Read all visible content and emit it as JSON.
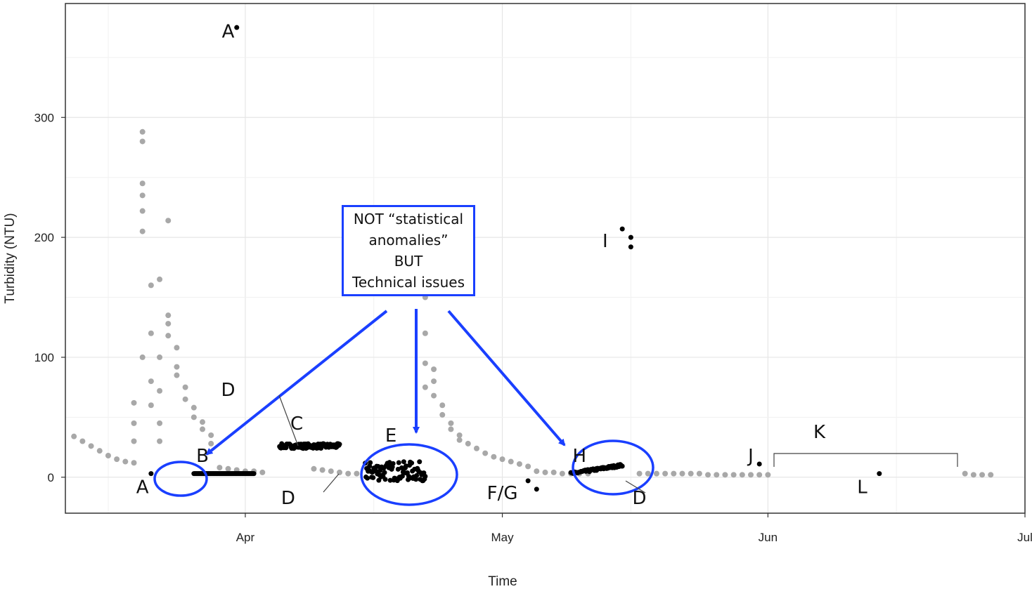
{
  "chart_data": {
    "type": "scatter",
    "title": "",
    "xlabel": "Time",
    "ylabel": "Turbidity (NTU)",
    "x_ticks": [
      "Apr",
      "May",
      "Jun",
      "Jul"
    ],
    "y_ticks": [
      0,
      100,
      200,
      300
    ],
    "xlim": [
      "2021-03-11",
      "2021-07-01"
    ],
    "ylim": [
      -30,
      395
    ],
    "grid": true,
    "colors": {
      "normal": "#a8a8a8",
      "anomaly": "#000000",
      "highlight": "#1a3fff"
    },
    "series": [
      {
        "points": [
          [
            "2021-03-12",
            34
          ],
          [
            "2021-03-13",
            30
          ],
          [
            "2021-03-14",
            26
          ],
          [
            "2021-03-15",
            22
          ],
          [
            "2021-03-16",
            18
          ],
          [
            "2021-03-17",
            15
          ],
          [
            "2021-03-18",
            13
          ],
          [
            "2021-03-19",
            12
          ],
          [
            "2021-03-19",
            30
          ],
          [
            "2021-03-19",
            45
          ],
          [
            "2021-03-19",
            62
          ],
          [
            "2021-03-20",
            100
          ],
          [
            "2021-03-20",
            205
          ],
          [
            "2021-03-20",
            222
          ],
          [
            "2021-03-20",
            235
          ],
          [
            "2021-03-20",
            245
          ],
          [
            "2021-03-20",
            280
          ],
          [
            "2021-03-20",
            288
          ],
          [
            "2021-03-21",
            160
          ],
          [
            "2021-03-21",
            120
          ],
          [
            "2021-03-21",
            80
          ],
          [
            "2021-03-21",
            60
          ],
          [
            "2021-03-22",
            45
          ],
          [
            "2021-03-22",
            100
          ],
          [
            "2021-03-22",
            72
          ],
          [
            "2021-03-22",
            30
          ],
          [
            "2021-03-22",
            165
          ],
          [
            "2021-03-23",
            214
          ],
          [
            "2021-03-23",
            135
          ],
          [
            "2021-03-23",
            128
          ],
          [
            "2021-03-23",
            118
          ],
          [
            "2021-03-24",
            108
          ],
          [
            "2021-03-24",
            92
          ],
          [
            "2021-03-24",
            85
          ],
          [
            "2021-03-25",
            75
          ],
          [
            "2021-03-25",
            65
          ],
          [
            "2021-03-26",
            58
          ],
          [
            "2021-03-26",
            50
          ],
          [
            "2021-03-27",
            46
          ],
          [
            "2021-03-27",
            40
          ],
          [
            "2021-03-28",
            35
          ],
          [
            "2021-03-28",
            28
          ],
          [
            "2021-03-29",
            8
          ],
          [
            "2021-03-30",
            7
          ],
          [
            "2021-03-31",
            6
          ],
          [
            "2021-04-01",
            5
          ],
          [
            "2021-04-02",
            5
          ],
          [
            "2021-04-03",
            4
          ],
          [
            "2021-04-09",
            7
          ],
          [
            "2021-04-10",
            6
          ],
          [
            "2021-04-11",
            5
          ],
          [
            "2021-04-12",
            4
          ],
          [
            "2021-04-13",
            3
          ],
          [
            "2021-04-14",
            3
          ],
          [
            "2021-04-22",
            150
          ],
          [
            "2021-04-22",
            120
          ],
          [
            "2021-04-22",
            95
          ],
          [
            "2021-04-22",
            75
          ],
          [
            "2021-04-23",
            90
          ],
          [
            "2021-04-23",
            80
          ],
          [
            "2021-04-23",
            68
          ],
          [
            "2021-04-24",
            60
          ],
          [
            "2021-04-24",
            52
          ],
          [
            "2021-04-25",
            45
          ],
          [
            "2021-04-25",
            40
          ],
          [
            "2021-04-26",
            35
          ],
          [
            "2021-04-26",
            31
          ],
          [
            "2021-04-27",
            28
          ],
          [
            "2021-04-28",
            24
          ],
          [
            "2021-04-29",
            20
          ],
          [
            "2021-04-30",
            17
          ],
          [
            "2021-05-01",
            15
          ],
          [
            "2021-05-02",
            13
          ],
          [
            "2021-05-03",
            11
          ],
          [
            "2021-05-04",
            9
          ],
          [
            "2021-05-05",
            5
          ],
          [
            "2021-05-06",
            4
          ],
          [
            "2021-05-07",
            4
          ],
          [
            "2021-05-08",
            3
          ],
          [
            "2021-05-09",
            3
          ],
          [
            "2021-05-10",
            3
          ],
          [
            "2021-05-11",
            3
          ],
          [
            "2021-05-17",
            3
          ],
          [
            "2021-05-18",
            3
          ],
          [
            "2021-05-19",
            3
          ],
          [
            "2021-05-20",
            3
          ],
          [
            "2021-05-21",
            3
          ],
          [
            "2021-05-22",
            3
          ],
          [
            "2021-05-23",
            3
          ],
          [
            "2021-05-24",
            3
          ],
          [
            "2021-05-25",
            2
          ],
          [
            "2021-05-26",
            2
          ],
          [
            "2021-05-27",
            2
          ],
          [
            "2021-05-28",
            2
          ],
          [
            "2021-05-29",
            2
          ],
          [
            "2021-05-30",
            2
          ],
          [
            "2021-05-31",
            2
          ],
          [
            "2021-06-01",
            2
          ],
          [
            "2021-06-24",
            3
          ],
          [
            "2021-06-25",
            2
          ],
          [
            "2021-06-26",
            2
          ],
          [
            "2021-06-27",
            2
          ]
        ]
      },
      {
        "points": [
          [
            "2021-03-31",
            375
          ],
          [
            "2021-03-21",
            3
          ],
          [
            "2021-05-15",
            207
          ],
          [
            "2021-05-16",
            200
          ],
          [
            "2021-05-16",
            192
          ],
          [
            "2021-05-04",
            -3
          ],
          [
            "2021-05-05",
            -10
          ],
          [
            "2021-05-31",
            11
          ],
          [
            "2021-06-14",
            3
          ]
        ]
      }
    ],
    "runs": [
      {
        "from": "2021-03-26",
        "to": "2021-04-02",
        "y0": 3,
        "y1": 3,
        "jitter": 0
      },
      {
        "from": "2021-04-05",
        "to": "2021-04-12",
        "y0": 26,
        "y1": 26,
        "jitter": 2
      },
      {
        "from": "2021-04-15",
        "to": "2021-04-22",
        "y0": 5,
        "y1": 5,
        "jitter": 8
      },
      {
        "from": "2021-05-09",
        "to": "2021-05-15",
        "y0": 3,
        "y1": 10,
        "jitter": 1
      }
    ],
    "annotations": [
      {
        "text": "A",
        "x": "2021-03-30",
        "y": 372
      },
      {
        "text": "A",
        "x": "2021-03-20",
        "y": -8
      },
      {
        "text": "B",
        "x": "2021-03-27",
        "y": 18
      },
      {
        "text": "C",
        "x": "2021-04-07",
        "y": 45
      },
      {
        "text": "D",
        "x": "2021-03-30",
        "y": 73
      },
      {
        "text": "D",
        "x": "2021-04-06",
        "y": -17
      },
      {
        "text": "D",
        "x": "2021-05-17",
        "y": -17
      },
      {
        "text": "E",
        "x": "2021-04-18",
        "y": 35
      },
      {
        "text": "F/G",
        "x": "2021-05-01",
        "y": -13
      },
      {
        "text": "H",
        "x": "2021-05-10",
        "y": 18
      },
      {
        "text": "I",
        "x": "2021-05-13",
        "y": 197
      },
      {
        "text": "J",
        "x": "2021-05-30",
        "y": 18
      },
      {
        "text": "K",
        "x": "2021-06-07",
        "y": 38
      },
      {
        "text": "L",
        "x": "2021-06-12",
        "y": -8
      }
    ],
    "callout": {
      "lines": [
        "NOT “statistical",
        "anomalies”",
        "BUT",
        "Technical issues"
      ]
    }
  }
}
